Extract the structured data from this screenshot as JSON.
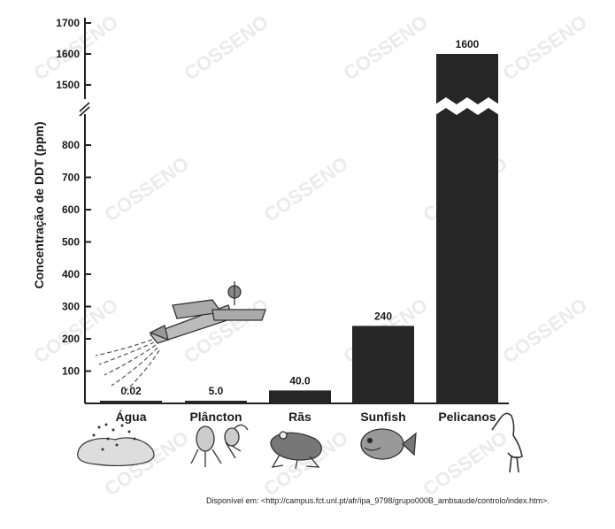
{
  "chart_data": {
    "type": "bar",
    "ylabel": "Concentração de DDT (ppm)",
    "categories": [
      "Água",
      "Plâncton",
      "Rãs",
      "Sunfish",
      "Pelicanos"
    ],
    "values": [
      0.02,
      5.0,
      40.0,
      240,
      1600
    ],
    "data_labels": [
      "0.02",
      "5.0",
      "40.0",
      "240",
      "1600"
    ],
    "yticks_lower": [
      100,
      200,
      300,
      400,
      500,
      600,
      700,
      800
    ],
    "yticks_upper": [
      1500,
      1600,
      1700
    ],
    "ylim_lower": [
      0,
      850
    ],
    "ylim_upper": [
      1450,
      1700
    ],
    "axis_break": true,
    "grid": false,
    "bar_color": "#262626"
  },
  "illustrations": [
    "airplane-icon",
    "water-icon",
    "plankton-icon",
    "frog-icon",
    "fish-icon",
    "pelican-icon"
  ],
  "watermark": "COSSENO",
  "source": "Disponível em: <http://campus.fct.unl.pt/afr/ipa_9798/grupo000B_ambsaude/controlo/index.htm>."
}
